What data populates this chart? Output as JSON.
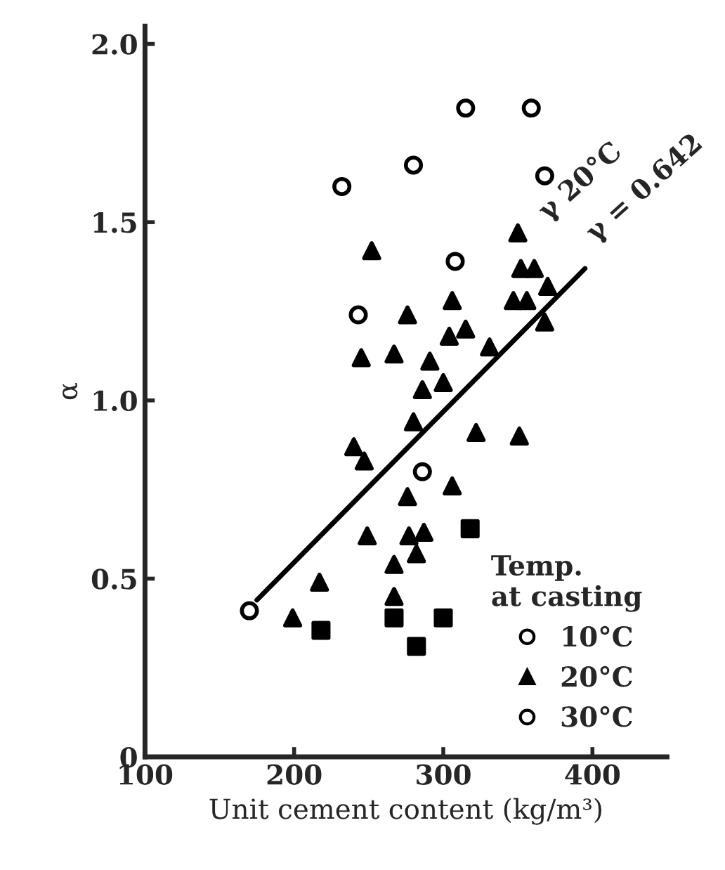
{
  "chart_data": {
    "type": "scatter",
    "xlabel": "Unit cement content (kg/m³)",
    "ylabel": "α",
    "legend_title": "Temp.\nat casting",
    "legend": "bottom right",
    "grid": false,
    "xlim": [
      100,
      450
    ],
    "xticks": [
      100,
      200,
      300,
      400
    ],
    "ylim": [
      0,
      2.05
    ],
    "yticks": [
      0,
      {
        "value": 0.5,
        "label": "0.5"
      },
      {
        "value": 1.0,
        "label": "1.0"
      },
      {
        "value": 1.5,
        "label": "1.5"
      },
      {
        "value": 2.0,
        "label": "2.0"
      }
    ],
    "annotations": [
      "γ 20°C",
      "γ = 0.642"
    ],
    "series": [
      {
        "color": "#000000",
        "marker": "square",
        "x": [
          218,
          267,
          282,
          300,
          318
        ],
        "values": [
          0.355,
          0.39,
          0.31,
          0.39,
          0.64
        ]
      },
      {
        "name": "10°C",
        "color": "#000000",
        "marker": "circle",
        "x": [
          286,
          170
        ],
        "values": [
          0.8,
          0.41
        ]
      },
      {
        "name": "20°C",
        "color": "#000000",
        "marker": "triangle",
        "x": [
          252,
          245,
          267,
          276,
          240,
          247,
          249,
          217,
          199,
          267,
          267,
          277,
          276,
          280,
          286,
          291,
          306,
          304,
          315,
          322,
          351,
          306,
          287,
          282,
          350,
          352,
          361,
          356,
          370,
          368,
          347,
          331,
          300
        ],
        "values": [
          1.42,
          1.12,
          1.13,
          1.24,
          0.87,
          0.83,
          0.62,
          0.49,
          0.39,
          0.45,
          0.54,
          0.62,
          0.73,
          0.94,
          1.03,
          1.11,
          1.28,
          1.18,
          1.2,
          0.91,
          0.9,
          0.76,
          0.63,
          0.57,
          1.47,
          1.37,
          1.37,
          1.28,
          1.32,
          1.22,
          1.28,
          1.15,
          1.05
        ]
      },
      {
        "name": "30°C",
        "color": "#000000",
        "marker": "circle",
        "x": [
          232,
          280,
          315,
          359,
          368,
          308,
          243
        ],
        "values": [
          1.6,
          1.66,
          1.82,
          1.82,
          1.63,
          1.39,
          1.24
        ]
      },
      {
        "type": "line",
        "color": "#000000",
        "x": [
          175,
          395
        ],
        "values": [
          0.44,
          1.37
        ]
      }
    ]
  }
}
